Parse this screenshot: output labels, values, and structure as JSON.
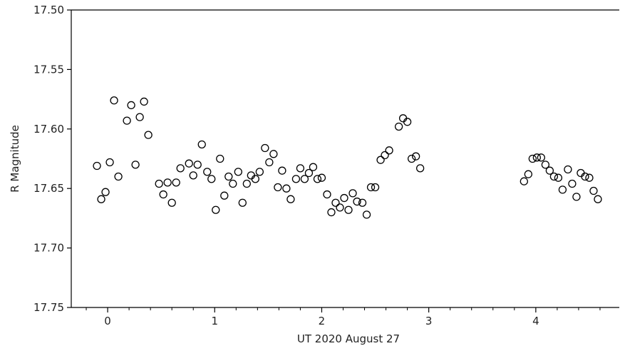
{
  "chart_data": {
    "type": "scatter",
    "title": "",
    "xlabel": "UT 2020 August 27",
    "ylabel": "R Magnitude",
    "xlim": [
      -0.34,
      4.78
    ],
    "ylim": [
      17.5,
      17.75
    ],
    "y_inverted": true,
    "grid": false,
    "legend": "none",
    "marker": "open-circle",
    "marker_color": "#000000",
    "x_ticks": [
      0,
      1,
      2,
      3,
      4
    ],
    "x_tick_labels": [
      "0",
      "1",
      "2",
      "3",
      "4"
    ],
    "x_minor_step": 0.2,
    "y_ticks": [
      17.5,
      17.55,
      17.6,
      17.65,
      17.7,
      17.75
    ],
    "y_tick_labels": [
      "17.50",
      "17.55",
      "17.60",
      "17.65",
      "17.70",
      "17.75"
    ],
    "x": [
      -0.1,
      -0.06,
      -0.02,
      0.02,
      0.06,
      0.1,
      0.18,
      0.22,
      0.26,
      0.3,
      0.34,
      0.38,
      0.48,
      0.52,
      0.56,
      0.6,
      0.64,
      0.68,
      0.76,
      0.8,
      0.84,
      0.88,
      0.93,
      0.97,
      1.01,
      1.05,
      1.09,
      1.13,
      1.17,
      1.22,
      1.26,
      1.3,
      1.34,
      1.38,
      1.42,
      1.47,
      1.51,
      1.55,
      1.59,
      1.63,
      1.67,
      1.71,
      1.76,
      1.8,
      1.84,
      1.88,
      1.92,
      1.96,
      2.0,
      2.05,
      2.09,
      2.13,
      2.17,
      2.21,
      2.25,
      2.29,
      2.33,
      2.38,
      2.42,
      2.46,
      2.5,
      2.55,
      2.59,
      2.63,
      2.72,
      2.76,
      2.8,
      2.84,
      2.88,
      2.92,
      3.89,
      3.93,
      3.97,
      4.01,
      4.05,
      4.09,
      4.13,
      4.17,
      4.21,
      4.25,
      4.3,
      4.34,
      4.38,
      4.42,
      4.46,
      4.5,
      4.54,
      4.58
    ],
    "y": [
      17.631,
      17.659,
      17.653,
      17.628,
      17.576,
      17.64,
      17.593,
      17.58,
      17.63,
      17.59,
      17.577,
      17.605,
      17.646,
      17.655,
      17.645,
      17.662,
      17.645,
      17.633,
      17.629,
      17.639,
      17.63,
      17.613,
      17.636,
      17.642,
      17.668,
      17.625,
      17.656,
      17.64,
      17.646,
      17.636,
      17.662,
      17.646,
      17.639,
      17.642,
      17.636,
      17.616,
      17.628,
      17.621,
      17.649,
      17.635,
      17.65,
      17.659,
      17.642,
      17.633,
      17.642,
      17.637,
      17.632,
      17.642,
      17.641,
      17.655,
      17.67,
      17.662,
      17.666,
      17.658,
      17.668,
      17.654,
      17.661,
      17.662,
      17.672,
      17.649,
      17.649,
      17.626,
      17.622,
      17.618,
      17.598,
      17.591,
      17.594,
      17.625,
      17.623,
      17.633,
      17.644,
      17.638,
      17.625,
      17.624,
      17.624,
      17.63,
      17.635,
      17.64,
      17.641,
      17.651,
      17.634,
      17.646,
      17.657,
      17.637,
      17.64,
      17.641,
      17.652,
      17.659
    ]
  }
}
